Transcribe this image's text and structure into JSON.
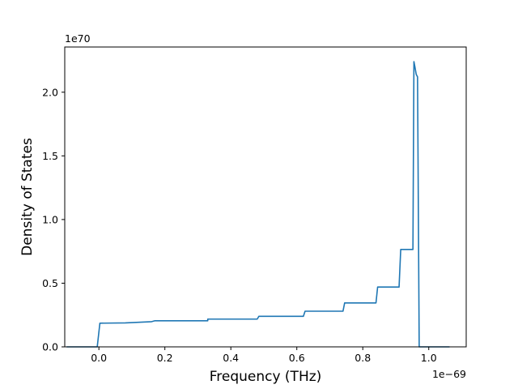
{
  "chart_data": {
    "type": "line",
    "title": "",
    "xlabel": "Frequency (THz)",
    "ylabel": "Density of States",
    "x_offset_label": "1e−69",
    "y_offset_label": "1e70",
    "xlim": [
      -0.1035,
      1.1135
    ],
    "ylim": [
      0,
      2.355
    ],
    "x_ticks": [
      0.0,
      0.2,
      0.4,
      0.6,
      0.8,
      1.0
    ],
    "x_tick_labels": [
      "0.0",
      "0.2",
      "0.4",
      "0.6",
      "0.8",
      "1.0"
    ],
    "y_ticks": [
      0.0,
      0.5,
      1.0,
      1.5,
      2.0
    ],
    "y_tick_labels": [
      "0.0",
      "0.5",
      "1.0",
      "1.5",
      "2.0"
    ],
    "grid": false,
    "color": "#1f77b4",
    "series": [
      {
        "x": [
          -0.098,
          -0.005,
          0.003,
          0.08,
          0.16,
          0.17,
          0.33,
          0.33,
          0.48,
          0.485,
          0.62,
          0.625,
          0.74,
          0.745,
          0.84,
          0.845,
          0.91,
          0.915,
          0.952,
          0.955,
          0.958,
          0.962,
          0.966,
          0.971,
          1.063
        ],
        "y": [
          0.0,
          0.0,
          0.186,
          0.188,
          0.198,
          0.205,
          0.205,
          0.218,
          0.218,
          0.24,
          0.24,
          0.28,
          0.28,
          0.345,
          0.345,
          0.47,
          0.47,
          0.765,
          0.765,
          2.24,
          2.2,
          2.14,
          2.12,
          0.0,
          0.0
        ]
      }
    ]
  }
}
